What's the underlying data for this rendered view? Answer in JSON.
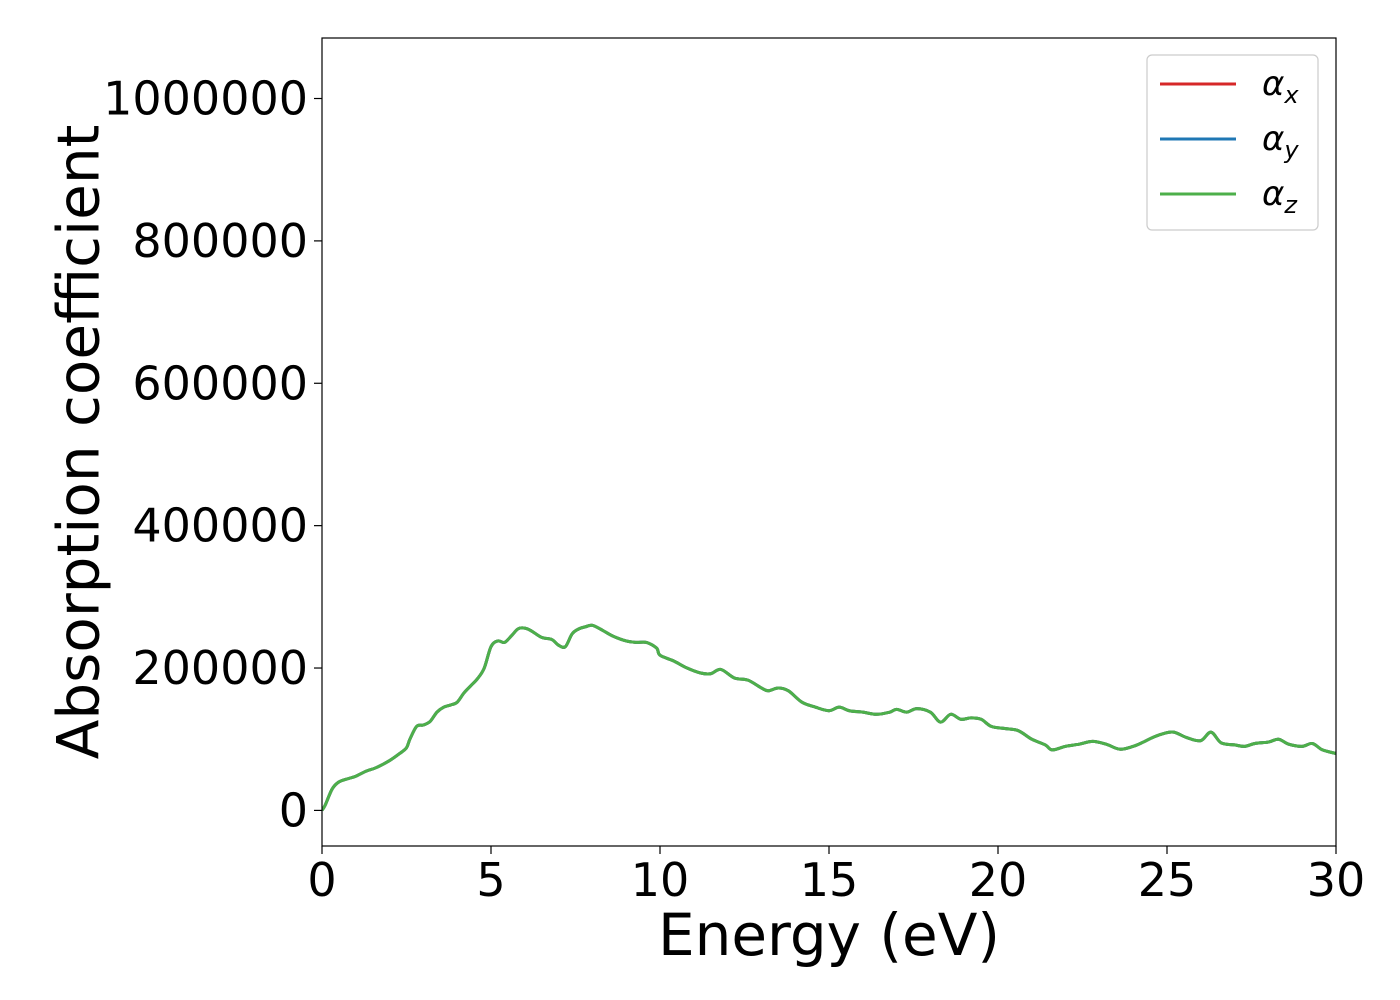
{
  "chart_data": {
    "type": "line",
    "title": "",
    "xlabel": "Energy (eV)",
    "ylabel": "Absorption coefficient",
    "xlim": [
      0,
      30
    ],
    "ylim": [
      -50000,
      1085000
    ],
    "xticks": [
      0,
      5,
      10,
      15,
      20,
      25,
      30
    ],
    "yticks": [
      0,
      200000,
      400000,
      600000,
      800000,
      1000000
    ],
    "grid": false,
    "legend_position": "top-right",
    "x": [
      0,
      0.1,
      0.3,
      0.5,
      0.8,
      1.0,
      1.3,
      1.6,
      2.0,
      2.3,
      2.5,
      2.6,
      2.8,
      3.0,
      3.2,
      3.4,
      3.6,
      3.8,
      4.0,
      4.2,
      4.4,
      4.6,
      4.8,
      5.0,
      5.2,
      5.4,
      5.6,
      5.8,
      6.0,
      6.2,
      6.5,
      6.8,
      7.0,
      7.2,
      7.4,
      7.6,
      7.8,
      8.0,
      8.3,
      8.6,
      9.0,
      9.3,
      9.6,
      9.9,
      10.0,
      10.4,
      10.8,
      11.2,
      11.5,
      11.8,
      12.2,
      12.6,
      13.0,
      13.2,
      13.5,
      13.8,
      14.2,
      14.6,
      15.0,
      15.3,
      15.6,
      16.0,
      16.4,
      16.8,
      17.0,
      17.3,
      17.6,
      18.0,
      18.3,
      18.6,
      18.9,
      19.2,
      19.5,
      19.8,
      20.2,
      20.6,
      21.0,
      21.4,
      21.6,
      22.0,
      22.4,
      22.8,
      23.2,
      23.6,
      24.0,
      24.3,
      24.6,
      24.9,
      25.2,
      25.6,
      26.0,
      26.3,
      26.6,
      27.0,
      27.3,
      27.6,
      28.0,
      28.3,
      28.6,
      29.0,
      29.3,
      29.6,
      30.0
    ],
    "series": [
      {
        "name": "α_x",
        "color": "#d62728",
        "values": [
          0,
          8000,
          30000,
          40000,
          45000,
          48000,
          55000,
          60000,
          70000,
          80000,
          88000,
          100000,
          118000,
          120000,
          125000,
          138000,
          145000,
          148000,
          152000,
          165000,
          175000,
          185000,
          200000,
          230000,
          238000,
          236000,
          245000,
          255000,
          256000,
          252000,
          243000,
          240000,
          232000,
          230000,
          248000,
          255000,
          258000,
          260000,
          253000,
          245000,
          238000,
          236000,
          236000,
          228000,
          218000,
          210000,
          200000,
          193000,
          192000,
          198000,
          186000,
          183000,
          172000,
          168000,
          172000,
          168000,
          152000,
          145000,
          140000,
          145000,
          140000,
          138000,
          135000,
          138000,
          142000,
          138000,
          143000,
          138000,
          124000,
          135000,
          128000,
          130000,
          128000,
          118000,
          115000,
          112000,
          100000,
          92000,
          85000,
          90000,
          93000,
          97000,
          93000,
          86000,
          90000,
          96000,
          103000,
          108000,
          110000,
          102000,
          98000,
          110000,
          95000,
          92000,
          90000,
          94000,
          96000,
          100000,
          93000,
          90000,
          94000,
          85000,
          80000
        ]
      },
      {
        "name": "α_y",
        "color": "#1f77b4",
        "values": [
          0,
          8000,
          30000,
          40000,
          45000,
          48000,
          55000,
          60000,
          70000,
          80000,
          88000,
          100000,
          118000,
          120000,
          125000,
          138000,
          145000,
          148000,
          152000,
          165000,
          175000,
          185000,
          200000,
          230000,
          238000,
          236000,
          245000,
          255000,
          256000,
          252000,
          243000,
          240000,
          232000,
          230000,
          248000,
          255000,
          258000,
          260000,
          253000,
          245000,
          238000,
          236000,
          236000,
          228000,
          218000,
          210000,
          200000,
          193000,
          192000,
          198000,
          186000,
          183000,
          172000,
          168000,
          172000,
          168000,
          152000,
          145000,
          140000,
          145000,
          140000,
          138000,
          135000,
          138000,
          142000,
          138000,
          143000,
          138000,
          124000,
          135000,
          128000,
          130000,
          128000,
          118000,
          115000,
          112000,
          100000,
          92000,
          85000,
          90000,
          93000,
          97000,
          93000,
          86000,
          90000,
          96000,
          103000,
          108000,
          110000,
          102000,
          98000,
          110000,
          95000,
          92000,
          90000,
          94000,
          96000,
          100000,
          93000,
          90000,
          94000,
          85000,
          80000
        ]
      },
      {
        "name": "α_z",
        "color": "#4daf4a",
        "values": [
          0,
          8000,
          30000,
          40000,
          45000,
          48000,
          55000,
          60000,
          70000,
          80000,
          88000,
          100000,
          118000,
          120000,
          125000,
          138000,
          145000,
          148000,
          152000,
          165000,
          175000,
          185000,
          200000,
          230000,
          238000,
          236000,
          245000,
          255000,
          256000,
          252000,
          243000,
          240000,
          232000,
          230000,
          248000,
          255000,
          258000,
          260000,
          253000,
          245000,
          238000,
          236000,
          236000,
          228000,
          218000,
          210000,
          200000,
          193000,
          192000,
          198000,
          186000,
          183000,
          172000,
          168000,
          172000,
          168000,
          152000,
          145000,
          140000,
          145000,
          140000,
          138000,
          135000,
          138000,
          142000,
          138000,
          143000,
          138000,
          124000,
          135000,
          128000,
          130000,
          128000,
          118000,
          115000,
          112000,
          100000,
          92000,
          85000,
          90000,
          93000,
          97000,
          93000,
          86000,
          90000,
          96000,
          103000,
          108000,
          110000,
          102000,
          98000,
          110000,
          95000,
          92000,
          90000,
          94000,
          96000,
          100000,
          93000,
          90000,
          94000,
          85000,
          80000
        ]
      }
    ],
    "legend": [
      {
        "symbol": "α",
        "sub": "x",
        "color": "#d62728"
      },
      {
        "symbol": "α",
        "sub": "y",
        "color": "#1f77b4"
      },
      {
        "symbol": "α",
        "sub": "z",
        "color": "#4daf4a"
      }
    ]
  }
}
